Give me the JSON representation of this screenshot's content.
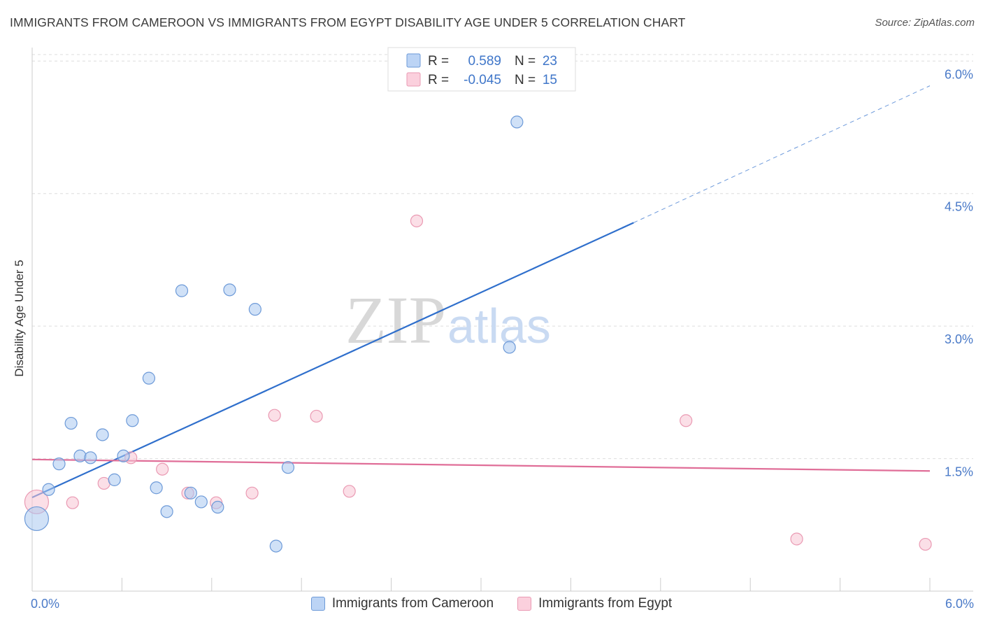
{
  "title": "IMMIGRANTS FROM CAMEROON VS IMMIGRANTS FROM EGYPT DISABILITY AGE UNDER 5 CORRELATION CHART",
  "source": "Source: ZipAtlas.com",
  "watermark": {
    "zip": "ZIP",
    "atlas": "atlas"
  },
  "chart_data": {
    "type": "scatter",
    "title": "IMMIGRANTS FROM CAMEROON VS IMMIGRANTS FROM EGYPT DISABILITY AGE UNDER 5 CORRELATION CHART",
    "xlabel": "",
    "ylabel": "Disability Age Under 5",
    "xlim": [
      0,
      6
    ],
    "ylim": [
      0,
      6.2
    ],
    "x_tick_labels": {
      "min": "0.0%",
      "max": "6.0%"
    },
    "y_ticks": [
      {
        "value": 1.5,
        "label": "1.5%"
      },
      {
        "value": 3.0,
        "label": "3.0%"
      },
      {
        "value": 4.5,
        "label": "4.5%"
      },
      {
        "value": 6.0,
        "label": "6.0%"
      }
    ],
    "grid": true,
    "legend_position": "top-center",
    "series": [
      {
        "name": "Immigrants from Cameroon",
        "color": "#a9c8f0",
        "stroke": "#6d9ad8",
        "line_color": "#2f6fcc",
        "R": "0.589",
        "N": "23",
        "points": [
          {
            "x": 0.03,
            "y": 0.82,
            "big": true
          },
          {
            "x": 0.11,
            "y": 1.15
          },
          {
            "x": 0.18,
            "y": 1.44
          },
          {
            "x": 0.26,
            "y": 1.9
          },
          {
            "x": 0.32,
            "y": 1.53
          },
          {
            "x": 0.39,
            "y": 1.51
          },
          {
            "x": 0.47,
            "y": 1.77
          },
          {
            "x": 0.55,
            "y": 1.26
          },
          {
            "x": 0.61,
            "y": 1.53
          },
          {
            "x": 0.67,
            "y": 1.93
          },
          {
            "x": 0.78,
            "y": 2.41
          },
          {
            "x": 0.83,
            "y": 1.17
          },
          {
            "x": 0.9,
            "y": 0.9
          },
          {
            "x": 1.0,
            "y": 3.4
          },
          {
            "x": 1.06,
            "y": 1.11
          },
          {
            "x": 1.13,
            "y": 1.01
          },
          {
            "x": 1.24,
            "y": 0.95
          },
          {
            "x": 1.32,
            "y": 3.41
          },
          {
            "x": 1.49,
            "y": 3.19
          },
          {
            "x": 1.63,
            "y": 0.51
          },
          {
            "x": 1.71,
            "y": 1.4
          },
          {
            "x": 3.19,
            "y": 2.76
          },
          {
            "x": 3.24,
            "y": 5.31
          }
        ],
        "trend": {
          "x0": 0.0,
          "y0": 1.06,
          "x1": 4.02,
          "y1": 4.17,
          "dash_to_x": 6.0,
          "dash_to_y": 5.72
        }
      },
      {
        "name": "Immigrants from Egypt",
        "color": "#f8c4d4",
        "stroke": "#ea9ab3",
        "line_color": "#e06e98",
        "R": "-0.045",
        "N": "15",
        "points": [
          {
            "x": 0.03,
            "y": 1.01,
            "big": true
          },
          {
            "x": 0.27,
            "y": 1.0
          },
          {
            "x": 0.48,
            "y": 1.22
          },
          {
            "x": 0.66,
            "y": 1.51
          },
          {
            "x": 0.87,
            "y": 1.38
          },
          {
            "x": 1.04,
            "y": 1.11
          },
          {
            "x": 1.23,
            "y": 1.0
          },
          {
            "x": 1.47,
            "y": 1.11
          },
          {
            "x": 1.62,
            "y": 1.99
          },
          {
            "x": 1.9,
            "y": 1.98
          },
          {
            "x": 2.12,
            "y": 1.13
          },
          {
            "x": 2.57,
            "y": 4.19
          },
          {
            "x": 4.37,
            "y": 1.93
          },
          {
            "x": 5.11,
            "y": 0.59
          },
          {
            "x": 5.97,
            "y": 0.53
          }
        ],
        "trend": {
          "x0": 0.0,
          "y0": 1.49,
          "x1": 6.0,
          "y1": 1.36
        }
      }
    ]
  },
  "legend": {
    "r_label": "R =",
    "n_label": "N ="
  }
}
